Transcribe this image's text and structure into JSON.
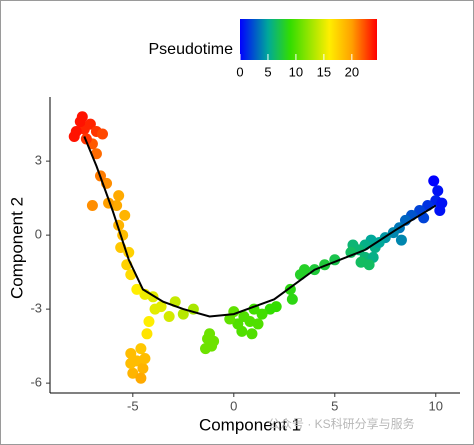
{
  "chart_data": {
    "type": "scatter",
    "xlabel": "Component 1",
    "ylabel": "Component 2",
    "xlim": [
      -9.1,
      11.2
    ],
    "ylim": [
      -6.4,
      5.6
    ],
    "xticks": [
      -5,
      0,
      5,
      10
    ],
    "yticks": [
      -6,
      -3,
      0,
      3
    ],
    "color_label": "Pseudotime",
    "color_lim": [
      0,
      24.5
    ],
    "color_ticks": [
      0,
      5,
      10,
      15,
      20
    ],
    "colorscale": [
      {
        "value": 0,
        "color": "#0000ff"
      },
      {
        "value": 5,
        "color": "#00a89a"
      },
      {
        "value": 9,
        "color": "#33dd00"
      },
      {
        "value": 16,
        "color": "#ffee00"
      },
      {
        "value": 20,
        "color": "#ffa000"
      },
      {
        "value": 24.5,
        "color": "#ff0000"
      }
    ],
    "x": [
      9.9,
      10.1,
      10,
      10.3,
      9.6,
      9.2,
      8.8,
      9.4,
      8.5,
      10.2,
      8.2,
      7.9,
      8.3,
      7.5,
      6.8,
      7,
      6.5,
      6.2,
      6.5,
      5.9,
      5.8,
      6.9,
      7.2,
      6.3,
      6.7,
      5,
      4.5,
      4,
      3.5,
      3.3,
      2.8,
      2.9,
      2.1,
      1.8,
      1.4,
      1,
      0.8,
      1.2,
      0.5,
      0.2,
      0,
      -0.2,
      0.4,
      0.9,
      -1.3,
      -1.1,
      -1.4,
      -1,
      -1.2,
      -2,
      -2.5,
      -2.9,
      -3.2,
      -3.6,
      -4,
      -4.4,
      -4.8,
      -3.9,
      -4.2,
      -4.3,
      -4.6,
      -5.1,
      -4.8,
      -4.5,
      -5,
      -4.6,
      -5.1,
      -4.4,
      -5.1,
      -5.3,
      -5.6,
      -5.2,
      -5.5,
      -5.7,
      -5.4,
      -5.8,
      -6.2,
      -5.7,
      -7,
      -6.3,
      -6.6,
      -6.8,
      -7,
      -7.4,
      -7.6,
      -7.1,
      -7.8,
      -6.8,
      -7.3,
      -7.9,
      -6.5,
      -7.5
    ],
    "y": [
      2.2,
      1.8,
      1.4,
      1.3,
      1.2,
      1,
      0.8,
      0.7,
      0.6,
      1,
      0.3,
      0.1,
      -0.2,
      -0.1,
      -0.2,
      -0.5,
      -0.4,
      -0.6,
      -0.9,
      -0.4,
      -0.7,
      -0.9,
      -0.3,
      -1.1,
      -1.2,
      -1,
      -1.2,
      -1.4,
      -1.4,
      -1.6,
      -2.2,
      -2.6,
      -2.9,
      -3,
      -3.2,
      -3,
      -3.5,
      -3.6,
      -3.3,
      -3.6,
      -3.1,
      -3.4,
      -3.9,
      -4,
      -4.2,
      -4.5,
      -4.6,
      -4.3,
      -4,
      -3,
      -3.2,
      -2.7,
      -3.3,
      -2.9,
      -2.5,
      -2.4,
      -2.2,
      -3,
      -3.5,
      -4,
      -4.6,
      -4.8,
      -5.1,
      -5.4,
      -5.6,
      -5.8,
      -5.2,
      -5,
      -1.6,
      -1.2,
      -0.5,
      -0.7,
      0,
      0.4,
      0.8,
      1.2,
      1.3,
      1.6,
      1.2,
      2.1,
      2.4,
      3.3,
      3.7,
      4.3,
      4.6,
      4.5,
      4.2,
      4.2,
      3.9,
      4,
      4.1,
      4.8
    ],
    "pseudotime": [
      0,
      0.5,
      1,
      0.5,
      1.5,
      2,
      2.5,
      2,
      3,
      0.5,
      3.5,
      4,
      4,
      4.5,
      5,
      5.5,
      5.5,
      6,
      6,
      6,
      6.5,
      5.5,
      5,
      6.5,
      6.5,
      7,
      7.5,
      7.5,
      8,
      8,
      8.5,
      8.5,
      9,
      9,
      9.5,
      9.5,
      10,
      10,
      10,
      10,
      10.5,
      10.5,
      10,
      10,
      11,
      11,
      11,
      11,
      11,
      13,
      13.5,
      14,
      14.5,
      15,
      15,
      15.5,
      16,
      15,
      16,
      16.5,
      18,
      18.5,
      18.5,
      19,
      19,
      19.5,
      18.5,
      18.5,
      17,
      17.5,
      18,
      17.5,
      18.5,
      19,
      19,
      19.5,
      20,
      19.5,
      20.5,
      20.5,
      21,
      21.5,
      22,
      23.5,
      24,
      23.5,
      24,
      23,
      23,
      24,
      22.5,
      24
    ],
    "trajectory": {
      "x": [
        10,
        8,
        6.5,
        4,
        2,
        0,
        -1.2,
        -2.5,
        -3.5,
        -4.5,
        -5.2,
        -6,
        -6.8,
        -7.4
      ],
      "y": [
        1.2,
        0.2,
        -0.6,
        -1.4,
        -2.6,
        -3.2,
        -3.3,
        -3,
        -2.7,
        -2.2,
        -1,
        1,
        2.8,
        4
      ],
      "color": "#000000"
    }
  },
  "watermark": "公众号 · KS科研分享与服务"
}
